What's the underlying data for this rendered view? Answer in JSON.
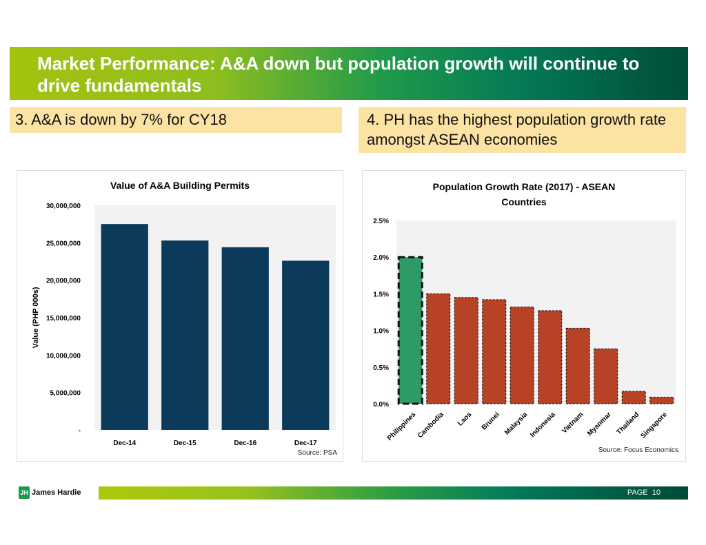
{
  "header": {
    "title": "Market Performance: A&A down but population growth will continue to drive fundamentals"
  },
  "subtitles": {
    "left": "3. A&A is down by 7% for CY18",
    "right": "4. PH has the highest population growth rate amongst ASEAN economies"
  },
  "footer": {
    "brand": "James Hardie",
    "page_label": "PAGE",
    "page_number": "10"
  },
  "chart_data": [
    {
      "type": "bar",
      "title": "Value of A&A Building Permits",
      "xlabel": "",
      "ylabel": "Value (PHP 000s)",
      "categories": [
        "Dec-14",
        "Dec-15",
        "Dec-16",
        "Dec-17"
      ],
      "values": [
        27500000,
        25300000,
        24400000,
        22600000
      ],
      "ylim": [
        0,
        30000000
      ],
      "yticks": [
        "-",
        "5,000,000",
        "10,000,000",
        "15,000,000",
        "20,000,000",
        "25,000,000",
        "30,000,000"
      ],
      "bar_color": "#0b3a5a",
      "source": "Source: PSA"
    },
    {
      "type": "bar",
      "title": "Population Growth Rate (2017) - ASEAN Countries",
      "xlabel": "",
      "ylabel": "",
      "categories": [
        "Philippines",
        "Cambodia",
        "Laos",
        "Brunei",
        "Malaysia",
        "Indonesia",
        "Vietnam",
        "Myanmar",
        "Thailand",
        "Singapore"
      ],
      "values": [
        2.0,
        1.5,
        1.45,
        1.42,
        1.32,
        1.27,
        1.03,
        0.75,
        0.17,
        0.09
      ],
      "unit": "%",
      "ylim": [
        0,
        2.5
      ],
      "yticks": [
        "0.0%",
        "0.5%",
        "1.0%",
        "1.5%",
        "2.0%",
        "2.5%"
      ],
      "highlight_color": "#2e9a66",
      "bar_color": "#b84226",
      "source": "Source: Focus Economics"
    }
  ]
}
